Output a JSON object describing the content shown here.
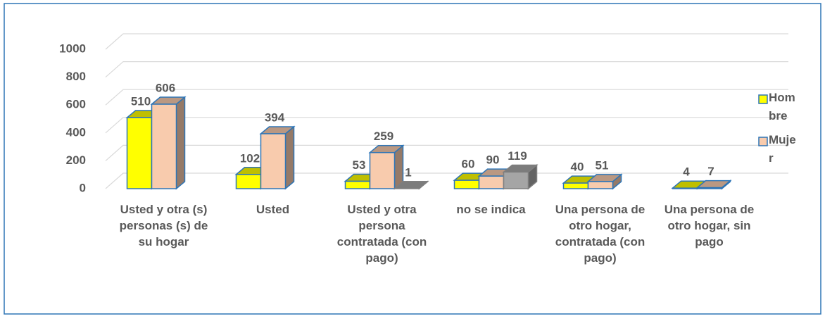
{
  "chart_data": {
    "type": "bar3d",
    "categories": [
      "Usted y otra (s) personas (s) de su hogar",
      "Usted",
      "Usted y otra persona contratada (con pago)",
      "no se indica",
      "Una persona de otro hogar, contratada (con pago)",
      "Una persona de otro hogar, sin pago"
    ],
    "series": [
      {
        "name": "Hombre",
        "color": "#ffff00",
        "values": [
          510,
          102,
          53,
          60,
          40,
          4
        ]
      },
      {
        "name": "Mujer",
        "color": "#f8cbad",
        "values": [
          606,
          394,
          259,
          90,
          51,
          7
        ]
      },
      {
        "color": "#a5a5a5",
        "values": [
          null,
          null,
          1,
          119,
          null,
          null
        ]
      }
    ],
    "ylim": [
      0,
      1000
    ],
    "yticks": [
      0,
      200,
      400,
      600,
      800,
      1000
    ],
    "grid": true,
    "legend": "right"
  }
}
